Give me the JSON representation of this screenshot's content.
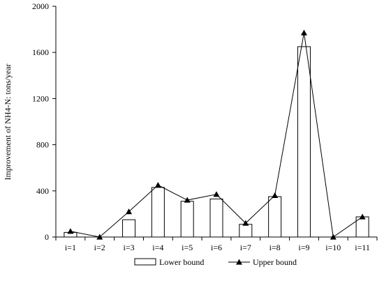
{
  "chart_data": {
    "type": "bar+line",
    "title": "",
    "xlabel": "",
    "ylabel": "Improvement  of NH4-N: tons/year",
    "ylim": [
      0,
      2000
    ],
    "yticks": [
      0,
      400,
      800,
      1200,
      1600,
      2000
    ],
    "categories": [
      "i=1",
      "i=2",
      "i=3",
      "i=4",
      "i=5",
      "i=6",
      "i=7",
      "i=8",
      "i=9",
      "i=10",
      "i=11"
    ],
    "series": [
      {
        "name": "Lower bound",
        "type": "bar",
        "values": [
          40,
          0,
          150,
          430,
          310,
          330,
          110,
          350,
          1650,
          0,
          175
        ]
      },
      {
        "name": "Upper bound",
        "type": "line",
        "values": [
          50,
          0,
          220,
          450,
          320,
          370,
          120,
          360,
          1770,
          0,
          175
        ]
      }
    ],
    "legend": {
      "position": "bottom",
      "entries": [
        "Lower bound",
        "Upper bound"
      ]
    },
    "grid": false
  }
}
